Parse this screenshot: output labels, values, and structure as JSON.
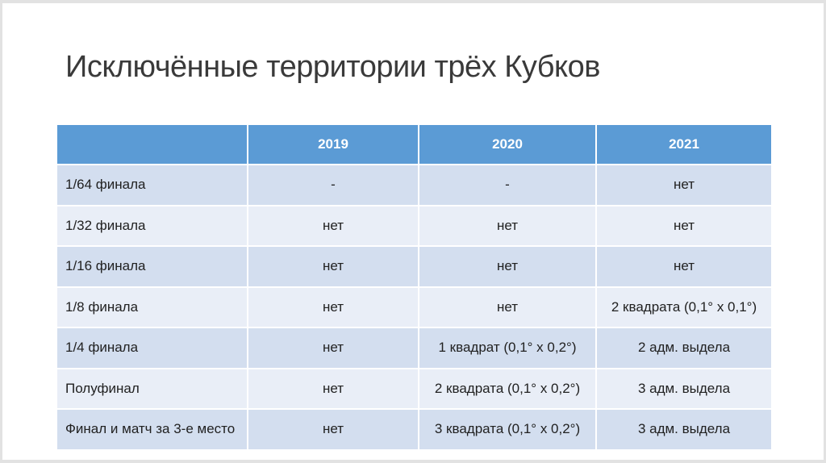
{
  "slide": {
    "title": "Исключённые территории трёх Кубков"
  },
  "table": {
    "columns": [
      "",
      "2019",
      "2020",
      "2021"
    ],
    "rows": [
      {
        "label": "1/64 финала",
        "values": [
          "-",
          "-",
          "нет"
        ]
      },
      {
        "label": "1/32 финала",
        "values": [
          "нет",
          "нет",
          "нет"
        ]
      },
      {
        "label": "1/16 финала",
        "values": [
          "нет",
          "нет",
          "нет"
        ]
      },
      {
        "label": "1/8 финала",
        "values": [
          "нет",
          "нет",
          "2 квадрата (0,1° x 0,1°)"
        ]
      },
      {
        "label": "1/4 финала",
        "values": [
          "нет",
          "1 квадрат (0,1° x 0,2°)",
          "2 адм. выдела"
        ]
      },
      {
        "label": "Полуфинал",
        "values": [
          "нет",
          "2 квадрата (0,1° x 0,2°)",
          "3 адм. выдела"
        ]
      },
      {
        "label": "Финал и матч за 3-е место",
        "values": [
          "нет",
          "3 квадрата (0,1° x 0,2°)",
          "3 адм. выдела"
        ]
      }
    ]
  },
  "colors": {
    "header_bg": "#5b9bd5",
    "header_text": "#ffffff",
    "band_dark": "#d3deef",
    "band_light": "#e9eef7",
    "body_text": "#212121",
    "title_color": "#3a3a3a",
    "slide_bg": "#ffffff",
    "frame": "#e2e2e2"
  }
}
